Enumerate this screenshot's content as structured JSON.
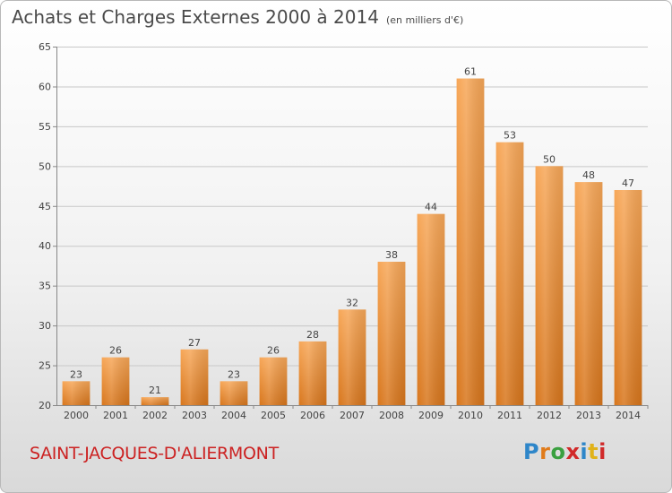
{
  "header": {
    "title": "Achats et Charges Externes 2000 à 2014",
    "subtitle": "(en milliers d'€)"
  },
  "footer": {
    "commune": "SAINT-JACQUES-D'ALIERMONT",
    "logo_letters": [
      "P",
      "r",
      "o",
      "x",
      "i",
      "t",
      "i"
    ]
  },
  "colors": {
    "bar_light": "#f7a758",
    "bar_dark": "#d8761c",
    "grid": "#c8c8c8",
    "commune_text": "#cc2222"
  },
  "chart_data": {
    "type": "bar",
    "title": "Achats et Charges Externes 2000 à 2014",
    "subtitle": "(en milliers d'€)",
    "xlabel": "",
    "ylabel": "",
    "categories": [
      "2000",
      "2001",
      "2002",
      "2003",
      "2004",
      "2005",
      "2006",
      "2007",
      "2008",
      "2009",
      "2010",
      "2011",
      "2012",
      "2013",
      "2014"
    ],
    "values": [
      23,
      26,
      21,
      27,
      23,
      26,
      28,
      32,
      38,
      44,
      61,
      53,
      50,
      48,
      47
    ],
    "ylim": [
      20,
      65
    ],
    "yticks": [
      20,
      25,
      30,
      35,
      40,
      45,
      50,
      55,
      60,
      65
    ],
    "grid": true,
    "data_labels": true
  }
}
